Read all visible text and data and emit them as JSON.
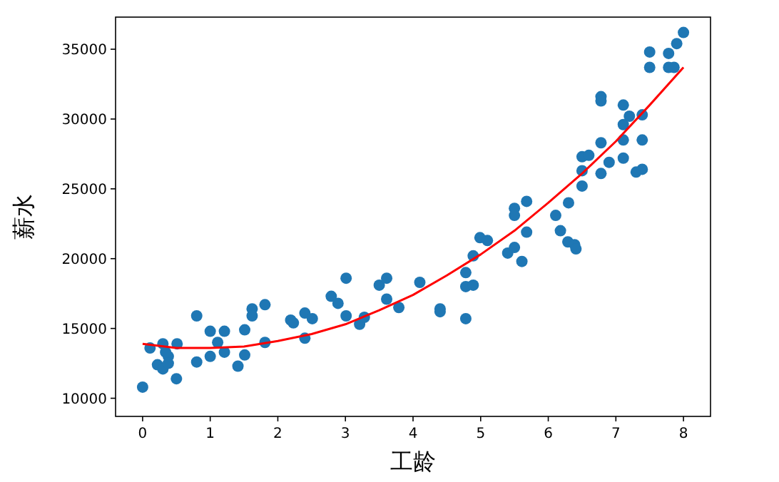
{
  "chart_data": {
    "type": "scatter",
    "xlabel": "工龄",
    "ylabel": "薪水",
    "xlim": [
      -0.4,
      8.4
    ],
    "ylim": [
      8700,
      37300
    ],
    "xticks": [
      0,
      1,
      2,
      3,
      4,
      5,
      6,
      7,
      8
    ],
    "yticks": [
      10000,
      15000,
      20000,
      25000,
      30000,
      35000
    ],
    "series": [
      {
        "marker": "circle",
        "color": "#1f77b4",
        "x": [
          0,
          0.11,
          0.3,
          0.51,
          0.22,
          0.3,
          0.38,
          0.38,
          0.34,
          0.5,
          0.8,
          0.8,
          1,
          1,
          1.21,
          1.21,
          1.11,
          1.41,
          1.51,
          1.51,
          1.62,
          1.62,
          1.81,
          1.81,
          2.19,
          2.23,
          2.4,
          2.4,
          2.51,
          2.79,
          2.89,
          3.01,
          3.01,
          3.21,
          3.28,
          3.5,
          3.61,
          3.61,
          3.79,
          4.1,
          4.4,
          4.4,
          4.78,
          4.78,
          4.89,
          4.78,
          4.89,
          4.99,
          5.1,
          5.4,
          5.5,
          5.61,
          5.68,
          5.5,
          5.5,
          5.68,
          6.11,
          6.18,
          6.3,
          6.29,
          6.39,
          6.41,
          6.5,
          6.5,
          6.5,
          6.6,
          6.78,
          6.78,
          6.9,
          6.78,
          6.78,
          7.11,
          7.11,
          7.11,
          7.11,
          7.2,
          7.39,
          7.39,
          7.3,
          7.39,
          7.5,
          7.5,
          7.78,
          7.78,
          7.9,
          8,
          7.86
        ],
        "values": [
          10800,
          13600,
          13900,
          13900,
          12400,
          12100,
          13000,
          12500,
          13300,
          11400,
          15900,
          12600,
          14800,
          13000,
          14800,
          13300,
          14000,
          12300,
          13100,
          14900,
          16400,
          15900,
          16700,
          14000,
          15600,
          15400,
          16100,
          14300,
          15700,
          17300,
          16800,
          18600,
          15900,
          15300,
          15800,
          18100,
          18600,
          17100,
          16500,
          18300,
          16400,
          16200,
          15700,
          18000,
          18100,
          19000,
          20200,
          21500,
          21300,
          20400,
          20800,
          19800,
          21900,
          23600,
          23100,
          24100,
          23100,
          22000,
          24000,
          21200,
          21000,
          20700,
          27300,
          26300,
          25200,
          27400,
          28300,
          26100,
          26900,
          31600,
          31300,
          31000,
          29600,
          28500,
          27200,
          30200,
          30300,
          28500,
          26200,
          26400,
          34800,
          33700,
          34700,
          33700,
          35400,
          36200,
          33700
        ]
      },
      {
        "type": "line",
        "marker": "none",
        "color": "#ff0000",
        "x": [
          0,
          0.5,
          1,
          1.5,
          2,
          2.5,
          3,
          3.5,
          4,
          4.5,
          5,
          5.5,
          6,
          6.5,
          7,
          7.5,
          8
        ],
        "values": [
          13900,
          13600,
          13600,
          13700,
          14100,
          14600,
          15300,
          16300,
          17400,
          18800,
          20300,
          22000,
          24000,
          26100,
          28400,
          31000,
          33700
        ]
      }
    ]
  }
}
